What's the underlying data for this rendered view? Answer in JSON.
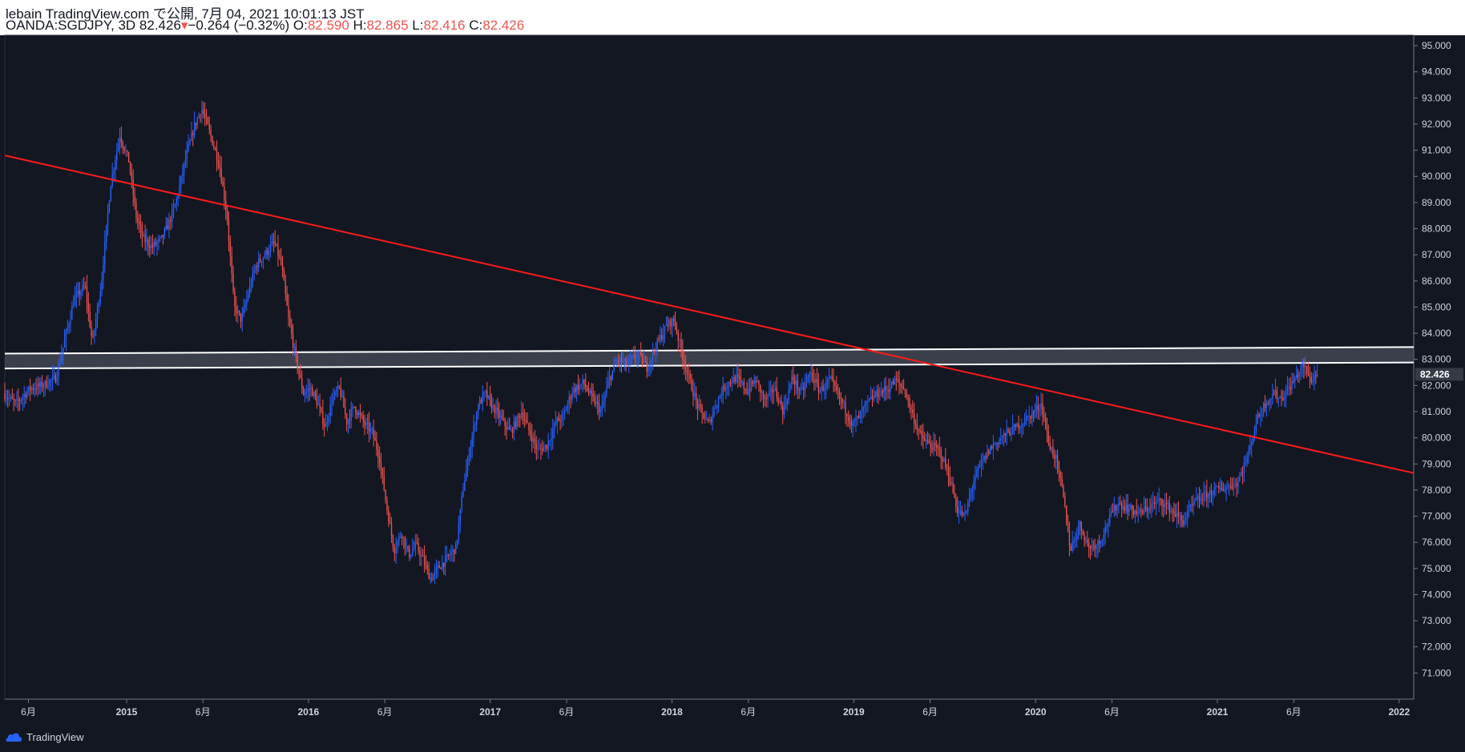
{
  "header": {
    "publish_line": "lebain TradingView.com で公開, 7月 04, 2021 10:01:13 JST",
    "symbol": "OANDA:SGDJPY, 3D",
    "last": "82.426",
    "change": "−0.264 (−0.32%)",
    "o_label": "O:",
    "o_value": "82.590",
    "h_label": "H:",
    "h_value": "82.865",
    "l_label": "L:",
    "l_value": "82.416",
    "c_label": "C:",
    "c_value": "82.426"
  },
  "footer": {
    "brand": "TradingView"
  },
  "colors": {
    "background": "#131722",
    "up": "#2962ff",
    "down": "#ef5350",
    "trendline": "#ff1a1a",
    "zone_fill": "#4a4e59",
    "zone_border": "#ffffff",
    "axis_text": "#d1d4dc",
    "price_label_bg": "#363a45"
  },
  "chart_data": {
    "type": "candlestick",
    "symbol": "OANDA:SGDJPY",
    "interval": "3D",
    "x_domain": [
      2014.33,
      2022.08
    ],
    "ylim": [
      70.0,
      95.4
    ],
    "y_ticks": [
      71,
      72,
      73,
      74,
      75,
      76,
      77,
      78,
      79,
      80,
      81,
      82,
      83,
      84,
      85,
      86,
      87,
      88,
      89,
      90,
      91,
      92,
      93,
      94,
      95
    ],
    "x_ticks": [
      {
        "x": 2014.46,
        "label": "6月"
      },
      {
        "x": 2015.0,
        "label": "2015"
      },
      {
        "x": 2015.42,
        "label": "6月"
      },
      {
        "x": 2016.0,
        "label": "2016"
      },
      {
        "x": 2016.42,
        "label": "6月"
      },
      {
        "x": 2017.0,
        "label": "2017"
      },
      {
        "x": 2017.42,
        "label": "6月"
      },
      {
        "x": 2018.0,
        "label": "2018"
      },
      {
        "x": 2018.42,
        "label": "6月"
      },
      {
        "x": 2019.0,
        "label": "2019"
      },
      {
        "x": 2019.42,
        "label": "6月"
      },
      {
        "x": 2020.0,
        "label": "2020"
      },
      {
        "x": 2020.42,
        "label": "6月"
      },
      {
        "x": 2021.0,
        "label": "2021"
      },
      {
        "x": 2021.42,
        "label": "6月"
      },
      {
        "x": 2022.0,
        "label": "2022"
      }
    ],
    "current_price": {
      "value": 82.426,
      "label": "82.426"
    },
    "price_path": [
      [
        2014.33,
        81.7
      ],
      [
        2014.4,
        81.3
      ],
      [
        2014.48,
        81.9
      ],
      [
        2014.55,
        82.0
      ],
      [
        2014.62,
        82.3
      ],
      [
        2014.66,
        83.5
      ],
      [
        2014.72,
        85.3
      ],
      [
        2014.78,
        85.8
      ],
      [
        2014.82,
        83.6
      ],
      [
        2014.87,
        86.0
      ],
      [
        2014.92,
        89.7
      ],
      [
        2014.97,
        91.6
      ],
      [
        2015.02,
        90.6
      ],
      [
        2015.06,
        88.5
      ],
      [
        2015.1,
        87.6
      ],
      [
        2015.15,
        87.3
      ],
      [
        2015.2,
        87.6
      ],
      [
        2015.24,
        88.2
      ],
      [
        2015.28,
        89.0
      ],
      [
        2015.33,
        90.6
      ],
      [
        2015.38,
        91.9
      ],
      [
        2015.42,
        92.6
      ],
      [
        2015.46,
        91.8
      ],
      [
        2015.52,
        90.4
      ],
      [
        2015.56,
        88.5
      ],
      [
        2015.6,
        85.0
      ],
      [
        2015.64,
        84.5
      ],
      [
        2015.68,
        85.6
      ],
      [
        2015.72,
        86.6
      ],
      [
        2015.78,
        87.1
      ],
      [
        2015.82,
        87.5
      ],
      [
        2015.86,
        86.6
      ],
      [
        2015.9,
        84.5
      ],
      [
        2015.94,
        83.0
      ],
      [
        2015.98,
        81.7
      ],
      [
        2016.02,
        81.9
      ],
      [
        2016.06,
        81.3
      ],
      [
        2016.1,
        80.4
      ],
      [
        2016.14,
        81.5
      ],
      [
        2016.18,
        81.9
      ],
      [
        2016.22,
        80.6
      ],
      [
        2016.26,
        81.2
      ],
      [
        2016.32,
        80.5
      ],
      [
        2016.36,
        80.2
      ],
      [
        2016.4,
        79.2
      ],
      [
        2016.44,
        77.3
      ],
      [
        2016.48,
        75.7
      ],
      [
        2016.52,
        76.4
      ],
      [
        2016.56,
        75.5
      ],
      [
        2016.6,
        75.9
      ],
      [
        2016.64,
        75.3
      ],
      [
        2016.68,
        74.6
      ],
      [
        2016.72,
        75.0
      ],
      [
        2016.76,
        75.3
      ],
      [
        2016.82,
        75.8
      ],
      [
        2016.86,
        78.1
      ],
      [
        2016.9,
        79.7
      ],
      [
        2016.94,
        81.2
      ],
      [
        2016.98,
        81.7
      ],
      [
        2017.02,
        81.2
      ],
      [
        2017.08,
        80.6
      ],
      [
        2017.12,
        80.2
      ],
      [
        2017.18,
        81.0
      ],
      [
        2017.22,
        80.3
      ],
      [
        2017.27,
        79.5
      ],
      [
        2017.32,
        79.7
      ],
      [
        2017.37,
        80.6
      ],
      [
        2017.41,
        80.8
      ],
      [
        2017.46,
        81.8
      ],
      [
        2017.52,
        82.1
      ],
      [
        2017.57,
        81.5
      ],
      [
        2017.62,
        81.0
      ],
      [
        2017.66,
        82.2
      ],
      [
        2017.71,
        83.0
      ],
      [
        2017.76,
        82.8
      ],
      [
        2017.82,
        83.2
      ],
      [
        2017.87,
        82.7
      ],
      [
        2017.92,
        83.5
      ],
      [
        2017.98,
        84.3
      ],
      [
        2018.02,
        84.5
      ],
      [
        2018.06,
        83.3
      ],
      [
        2018.1,
        82.3
      ],
      [
        2018.15,
        81.2
      ],
      [
        2018.21,
        80.5
      ],
      [
        2018.25,
        81.3
      ],
      [
        2018.3,
        82.0
      ],
      [
        2018.36,
        82.3
      ],
      [
        2018.42,
        81.8
      ],
      [
        2018.47,
        82.2
      ],
      [
        2018.52,
        81.4
      ],
      [
        2018.57,
        81.9
      ],
      [
        2018.62,
        81.0
      ],
      [
        2018.67,
        82.3
      ],
      [
        2018.72,
        81.7
      ],
      [
        2018.77,
        82.5
      ],
      [
        2018.82,
        81.8
      ],
      [
        2018.88,
        82.2
      ],
      [
        2018.94,
        81.4
      ],
      [
        2019.0,
        80.5
      ],
      [
        2019.04,
        80.8
      ],
      [
        2019.08,
        81.3
      ],
      [
        2019.14,
        81.7
      ],
      [
        2019.2,
        81.9
      ],
      [
        2019.24,
        82.2
      ],
      [
        2019.29,
        81.8
      ],
      [
        2019.34,
        80.7
      ],
      [
        2019.38,
        80.0
      ],
      [
        2019.43,
        79.7
      ],
      [
        2019.48,
        79.5
      ],
      [
        2019.53,
        78.6
      ],
      [
        2019.58,
        77.2
      ],
      [
        2019.62,
        77.0
      ],
      [
        2019.67,
        78.4
      ],
      [
        2019.71,
        79.0
      ],
      [
        2019.76,
        79.6
      ],
      [
        2019.82,
        80.0
      ],
      [
        2019.88,
        80.3
      ],
      [
        2019.94,
        80.6
      ],
      [
        2020.0,
        81.0
      ],
      [
        2020.04,
        81.3
      ],
      [
        2020.08,
        79.8
      ],
      [
        2020.12,
        79.2
      ],
      [
        2020.16,
        77.8
      ],
      [
        2020.2,
        75.7
      ],
      [
        2020.25,
        76.7
      ],
      [
        2020.3,
        75.8
      ],
      [
        2020.36,
        76.0
      ],
      [
        2020.42,
        77.0
      ],
      [
        2020.46,
        77.5
      ],
      [
        2020.52,
        77.3
      ],
      [
        2020.58,
        77.1
      ],
      [
        2020.64,
        77.4
      ],
      [
        2020.7,
        77.6
      ],
      [
        2020.76,
        77.2
      ],
      [
        2020.82,
        76.8
      ],
      [
        2020.88,
        77.5
      ],
      [
        2020.94,
        77.8
      ],
      [
        2021.0,
        78.0
      ],
      [
        2021.06,
        78.1
      ],
      [
        2021.12,
        78.3
      ],
      [
        2021.18,
        79.4
      ],
      [
        2021.22,
        80.6
      ],
      [
        2021.27,
        81.3
      ],
      [
        2021.32,
        81.7
      ],
      [
        2021.36,
        81.5
      ],
      [
        2021.4,
        81.9
      ],
      [
        2021.44,
        82.3
      ],
      [
        2021.48,
        82.8
      ],
      [
        2021.52,
        82.2
      ],
      [
        2021.55,
        82.43
      ]
    ],
    "trendline": {
      "from": [
        2014.33,
        90.8
      ],
      "to": [
        2022.08,
        78.65
      ]
    },
    "zone": {
      "top": {
        "from": [
          2014.33,
          83.22
        ],
        "to": [
          2022.08,
          83.47
        ]
      },
      "bottom": {
        "from": [
          2014.33,
          82.65
        ],
        "to": [
          2022.08,
          82.88
        ]
      }
    }
  }
}
